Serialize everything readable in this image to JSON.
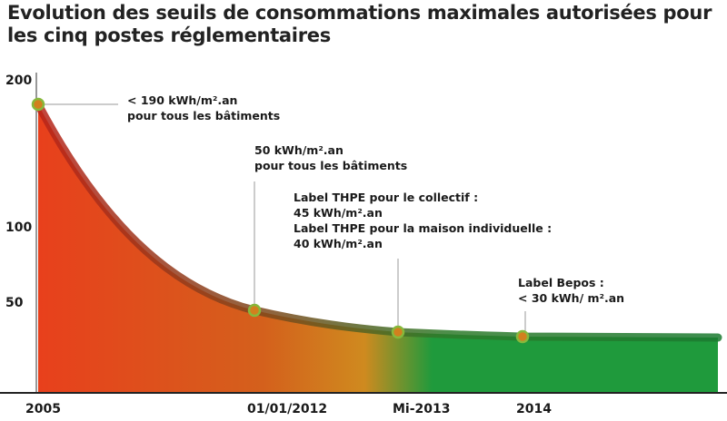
{
  "chart_data": {
    "type": "area",
    "title": "Evolution des seuils de consommations maximales autorisées pour les cinq postes réglementaires",
    "xlabel": "",
    "ylabel": "",
    "x_ticks": [
      "2005",
      "01/01/2012",
      "Mi-2013",
      "2014"
    ],
    "y_ticks": [
      50,
      100,
      200
    ],
    "points": [
      {
        "x": "2005",
        "y": 190,
        "annotation": [
          "< 190 kWh/m².an",
          "pour tous les bâtiments"
        ]
      },
      {
        "x": "01/01/2012",
        "y": 50,
        "annotation": [
          "50 kWh/m².an",
          "pour tous les bâtiments"
        ]
      },
      {
        "x": "Mi-2013",
        "y": 40,
        "annotation": [
          "Label THPE pour le collectif :",
          "45 kWh/m².an",
          "Label THPE pour la maison individuelle :",
          "40 kWh/m².an"
        ]
      },
      {
        "x": "2014",
        "y": 30,
        "annotation": [
          "Label Bepos :",
          "< 30 kWh/ m².an"
        ]
      }
    ],
    "colors": {
      "start": "#e8401c",
      "mid": "#cf8a1f",
      "end": "#1f9a3c",
      "marker_fill": "#d2801e",
      "marker_ring": "#86b83c"
    }
  }
}
